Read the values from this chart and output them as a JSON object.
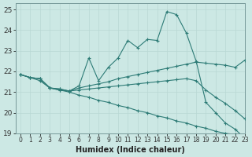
{
  "xlabel": "Humidex (Indice chaleur)",
  "xlim": [
    -0.5,
    23
  ],
  "ylim": [
    19,
    25.3
  ],
  "yticks": [
    19,
    20,
    21,
    22,
    23,
    24,
    25
  ],
  "xticks": [
    0,
    1,
    2,
    3,
    4,
    5,
    6,
    7,
    8,
    9,
    10,
    11,
    12,
    13,
    14,
    15,
    16,
    17,
    18,
    19,
    20,
    21,
    22,
    23
  ],
  "bg_color": "#cce8e4",
  "line_color": "#2d7b76",
  "grid_color": "#b8d8d4",
  "curves": [
    {
      "x": [
        0,
        1,
        2,
        3,
        4,
        5,
        6,
        7,
        8,
        9,
        10,
        11,
        12,
        13,
        14,
        15,
        16,
        17,
        18,
        19,
        20,
        21,
        22,
        23
      ],
      "y": [
        21.85,
        21.7,
        21.65,
        21.2,
        21.15,
        21.05,
        21.3,
        22.65,
        21.55,
        22.2,
        22.65,
        23.5,
        23.15,
        23.55,
        23.5,
        24.9,
        24.75,
        23.85,
        22.5,
        20.5,
        20.0,
        19.5,
        19.2,
        18.75
      ],
      "has_markers": true
    },
    {
      "x": [
        0,
        1,
        2,
        3,
        4,
        5,
        6,
        7,
        8,
        9,
        10,
        11,
        12,
        13,
        14,
        15,
        16,
        17,
        18,
        19,
        20,
        21,
        22,
        23
      ],
      "y": [
        21.85,
        21.7,
        21.65,
        21.2,
        21.15,
        21.05,
        21.2,
        21.3,
        21.4,
        21.5,
        21.65,
        21.75,
        21.85,
        21.95,
        22.05,
        22.15,
        22.25,
        22.35,
        22.45,
        22.4,
        22.35,
        22.3,
        22.2,
        22.55
      ],
      "has_markers": true
    },
    {
      "x": [
        0,
        1,
        2,
        3,
        4,
        5,
        6,
        7,
        8,
        9,
        10,
        11,
        12,
        13,
        14,
        15,
        16,
        17,
        18,
        19,
        20,
        21,
        22,
        23
      ],
      "y": [
        21.85,
        21.7,
        21.65,
        21.2,
        21.1,
        21.05,
        21.1,
        21.15,
        21.2,
        21.25,
        21.3,
        21.35,
        21.4,
        21.45,
        21.5,
        21.55,
        21.6,
        21.65,
        21.55,
        21.1,
        20.75,
        20.45,
        20.1,
        19.7
      ],
      "has_markers": true
    },
    {
      "x": [
        0,
        1,
        2,
        3,
        4,
        5,
        6,
        7,
        8,
        9,
        10,
        11,
        12,
        13,
        14,
        15,
        16,
        17,
        18,
        19,
        20,
        21,
        22,
        23
      ],
      "y": [
        21.85,
        21.7,
        21.55,
        21.2,
        21.1,
        21.0,
        20.85,
        20.75,
        20.6,
        20.5,
        20.35,
        20.25,
        20.1,
        20.0,
        19.85,
        19.75,
        19.6,
        19.5,
        19.35,
        19.25,
        19.1,
        19.0,
        18.95,
        18.85
      ],
      "has_markers": true
    }
  ]
}
